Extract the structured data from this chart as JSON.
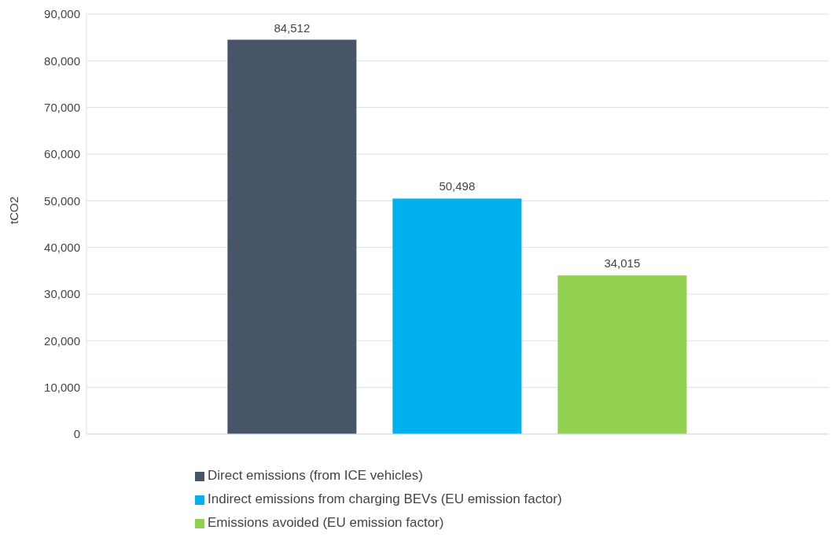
{
  "chart_data": {
    "type": "bar",
    "ylabel": "tCO2",
    "categories": [
      null
    ],
    "series": [
      {
        "name": "Direct emissions (from ICE vehicles)",
        "color": "#465568",
        "values": [
          84512
        ],
        "value_labels": [
          "84,512"
        ]
      },
      {
        "name": "Indirect emissions from charging BEVs (EU emission factor)",
        "color": "#00b0ef",
        "values": [
          50498
        ],
        "value_labels": [
          "50,498"
        ]
      },
      {
        "name": "Emissions avoided (EU emission factor)",
        "color": "#92d050",
        "values": [
          34015
        ],
        "value_labels": [
          "34,015"
        ]
      }
    ],
    "ylim": [
      0,
      90000
    ],
    "yticks": [
      {
        "value": 0,
        "label": "0"
      },
      {
        "value": 10000,
        "label": "10,000"
      },
      {
        "value": 20000,
        "label": "20,000"
      },
      {
        "value": 30000,
        "label": "30,000"
      },
      {
        "value": 40000,
        "label": "40,000"
      },
      {
        "value": 50000,
        "label": "50,000"
      },
      {
        "value": 60000,
        "label": "60,000"
      },
      {
        "value": 70000,
        "label": "70,000"
      },
      {
        "value": 80000,
        "label": "80,000"
      },
      {
        "value": 90000,
        "label": "90,000"
      }
    ],
    "grid": "y",
    "legend": "bottom"
  }
}
